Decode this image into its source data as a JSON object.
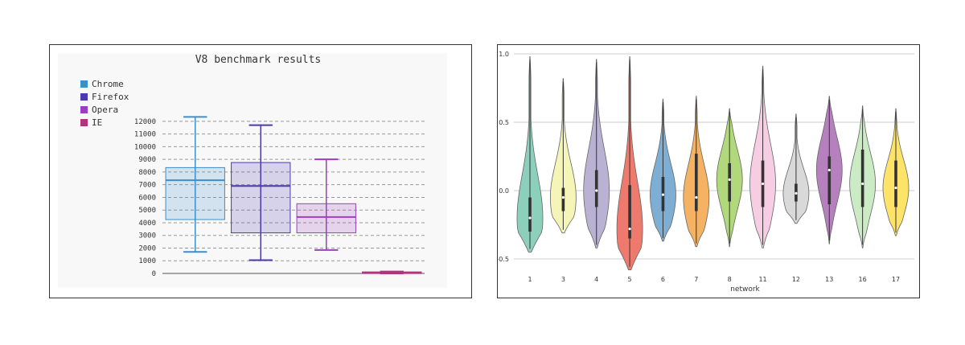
{
  "chart_data": [
    {
      "type": "box",
      "title": "V8 benchmark results",
      "ylim": [
        0,
        12500
      ],
      "yticks": [
        "0",
        "1000",
        "2000",
        "3000",
        "4000",
        "5000",
        "6000",
        "7000",
        "8000",
        "9000",
        "10000",
        "11000",
        "12000"
      ],
      "grid": true,
      "legend_position": "top-left",
      "series": [
        {
          "name": "Chrome",
          "color": "#3d8ec9",
          "min": 1700,
          "q1": 4250,
          "median": 7350,
          "q3": 8350,
          "max": 12350
        },
        {
          "name": "Firefox",
          "color": "#4b3aaf",
          "min": 1050,
          "q1": 3200,
          "median": 6900,
          "q3": 8750,
          "max": 11700
        },
        {
          "name": "Opera",
          "color": "#9b3fbf",
          "min": 1850,
          "q1": 3200,
          "median": 4450,
          "q3": 5500,
          "max": 9000
        },
        {
          "name": "IE",
          "color": "#b0347c",
          "min": 0,
          "q1": 0,
          "median": 60,
          "q3": 120,
          "max": 150
        }
      ]
    },
    {
      "type": "violin",
      "xlabel": "network",
      "ylim": [
        -0.6,
        1.0
      ],
      "yticks": [
        "1.0",
        "0.5",
        "0.0",
        "-0.5"
      ],
      "grid": true,
      "categories": [
        "1",
        "3",
        "4",
        "5",
        "6",
        "7",
        "8",
        "11",
        "12",
        "13",
        "16",
        "17"
      ],
      "series": [
        {
          "category": "1",
          "color": "#8cd0bc",
          "min": -0.45,
          "max": 0.98,
          "q1": -0.3,
          "median": -0.2,
          "q3": -0.05
        },
        {
          "category": "3",
          "color": "#f5f5b8",
          "min": -0.31,
          "max": 0.82,
          "q1": -0.15,
          "median": -0.05,
          "q3": 0.02
        },
        {
          "category": "4",
          "color": "#b9b2d2",
          "min": -0.42,
          "max": 0.96,
          "q1": -0.12,
          "median": 0.0,
          "q3": 0.15
        },
        {
          "category": "5",
          "color": "#ed7a6d",
          "min": -0.58,
          "max": 0.98,
          "q1": -0.35,
          "median": -0.28,
          "q3": 0.04
        },
        {
          "category": "6",
          "color": "#7eaed3",
          "min": -0.37,
          "max": 0.67,
          "q1": -0.15,
          "median": -0.03,
          "q3": 0.1
        },
        {
          "category": "7",
          "color": "#f5b263",
          "min": -0.41,
          "max": 0.69,
          "q1": -0.15,
          "median": -0.05,
          "q3": 0.27
        },
        {
          "category": "8",
          "color": "#b1d87b",
          "min": -0.41,
          "max": 0.6,
          "q1": -0.08,
          "median": 0.08,
          "q3": 0.2
        },
        {
          "category": "11",
          "color": "#f6cde2",
          "min": -0.42,
          "max": 0.91,
          "q1": -0.12,
          "median": 0.05,
          "q3": 0.22
        },
        {
          "category": "12",
          "color": "#d9d9d9",
          "min": -0.24,
          "max": 0.56,
          "q1": -0.08,
          "median": -0.02,
          "q3": 0.05
        },
        {
          "category": "13",
          "color": "#b580bd",
          "min": -0.39,
          "max": 0.69,
          "q1": -0.1,
          "median": 0.15,
          "q3": 0.25
        },
        {
          "category": "16",
          "color": "#cbebc5",
          "min": -0.42,
          "max": 0.62,
          "q1": -0.12,
          "median": 0.05,
          "q3": 0.3
        },
        {
          "category": "17",
          "color": "#fde468",
          "min": -0.33,
          "max": 0.6,
          "q1": -0.12,
          "median": 0.02,
          "q3": 0.22
        }
      ]
    }
  ]
}
